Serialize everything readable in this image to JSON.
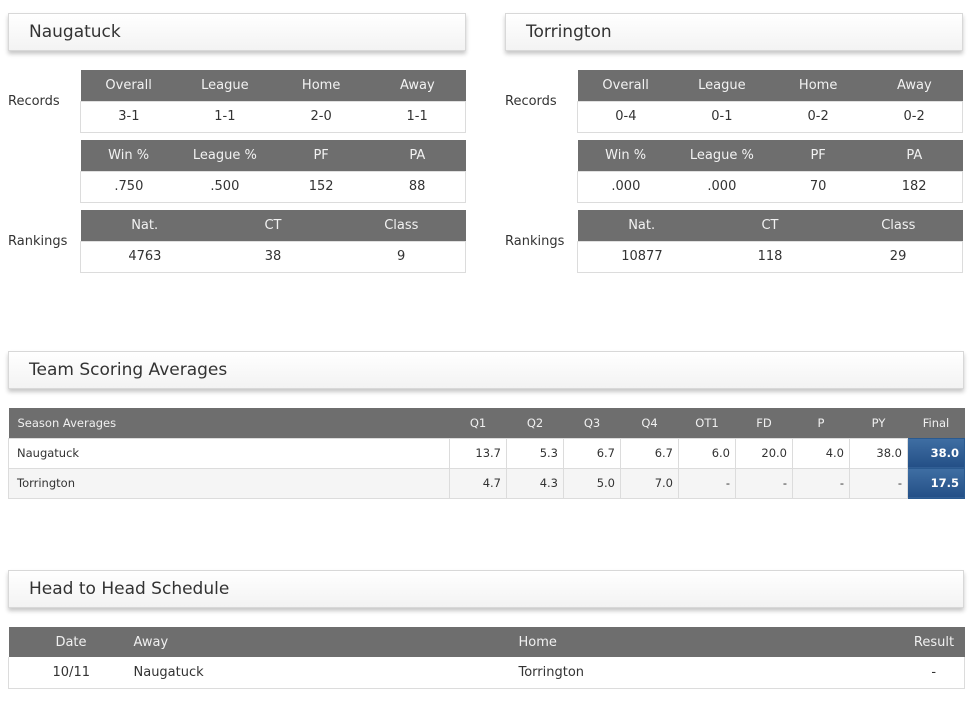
{
  "teams": [
    {
      "name": "Naugatuck",
      "records_label": "Records",
      "rankings_label": "Rankings",
      "records_headers": [
        "Overall",
        "League",
        "Home",
        "Away"
      ],
      "records_values": [
        "3-1",
        "1-1",
        "2-0",
        "1-1"
      ],
      "pct_headers": [
        "Win %",
        "League %",
        "PF",
        "PA"
      ],
      "pct_values": [
        ".750",
        ".500",
        "152",
        "88"
      ],
      "rank_headers": [
        "Nat.",
        "CT",
        "Class"
      ],
      "rank_values": [
        "4763",
        "38",
        "9"
      ]
    },
    {
      "name": "Torrington",
      "records_label": "Records",
      "rankings_label": "Rankings",
      "records_headers": [
        "Overall",
        "League",
        "Home",
        "Away"
      ],
      "records_values": [
        "0-4",
        "0-1",
        "0-2",
        "0-2"
      ],
      "pct_headers": [
        "Win %",
        "League %",
        "PF",
        "PA"
      ],
      "pct_values": [
        ".000",
        ".000",
        "70",
        "182"
      ],
      "rank_headers": [
        "Nat.",
        "CT",
        "Class"
      ],
      "rank_values": [
        "10877",
        "118",
        "29"
      ]
    }
  ],
  "scoring": {
    "title": "Team Scoring Averages",
    "headers": [
      "Season Averages",
      "Q1",
      "Q2",
      "Q3",
      "Q4",
      "OT1",
      "FD",
      "P",
      "PY",
      "Final"
    ],
    "rows": [
      [
        "Naugatuck",
        "13.7",
        "5.3",
        "6.7",
        "6.7",
        "6.0",
        "20.0",
        "4.0",
        "38.0",
        "38.0"
      ],
      [
        "Torrington",
        "4.7",
        "4.3",
        "5.0",
        "7.0",
        "-",
        "-",
        "-",
        "-",
        "17.5"
      ]
    ]
  },
  "schedule": {
    "title": "Head to Head Schedule",
    "headers": [
      "Date",
      "Away",
      "Home",
      "Result"
    ],
    "rows": [
      [
        "10/11",
        "Naugatuck",
        "Torrington",
        "-"
      ]
    ]
  }
}
